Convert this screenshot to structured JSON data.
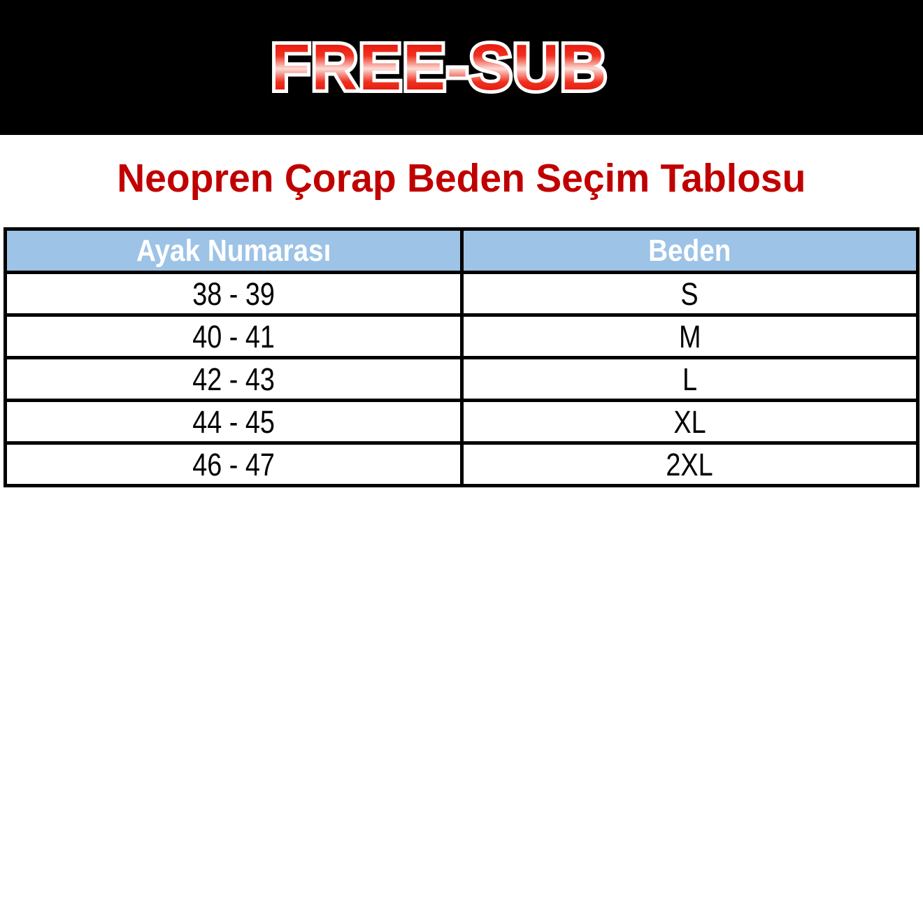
{
  "banner": {
    "background": "#000000",
    "logo_text": "FREE-SUB",
    "logo_outline_color": "#ffffff",
    "logo_gradient_top": "#e71408",
    "logo_gradient_middle": "#fbdcd6",
    "logo_gradient_bottom": "#dc1105"
  },
  "title": {
    "text": "Neopren Çorap Beden Seçim Tablosu",
    "color": "#C00000"
  },
  "size_table": {
    "border_color": "#000000",
    "header": {
      "background": "#9DC3E6",
      "text_color": "#ffffff",
      "columns": [
        {
          "label": "Ayak Numarası"
        },
        {
          "label": "Beden"
        }
      ]
    },
    "rows": [
      {
        "foot_size": "38 - 39",
        "size": "S"
      },
      {
        "foot_size": "40 - 41",
        "size": "M"
      },
      {
        "foot_size": "42 - 43",
        "size": "L"
      },
      {
        "foot_size": "44 - 45",
        "size": "XL"
      },
      {
        "foot_size": "46 - 47",
        "size": "2XL"
      }
    ]
  }
}
